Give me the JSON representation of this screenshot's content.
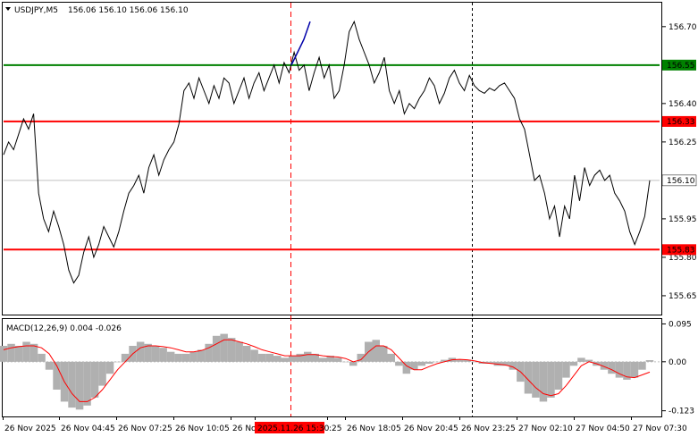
{
  "header": {
    "symbol": "USDJPY,M5",
    "ohlc": "156.06 156.10 156.06 156.10"
  },
  "chart_data": [
    {
      "type": "line",
      "title": "USDJPY,M5",
      "ylim": [
        155.58,
        156.79
      ],
      "y_ticks": [
        "156.70",
        "156.40",
        "156.25",
        "155.95",
        "155.80",
        "155.65"
      ],
      "x_ticks": [
        "26 Nov 2025",
        "26 Nov 04:45",
        "26 Nov 07:25",
        "26 Nov 10:05",
        "26 Nov",
        "2025.11.26 15:30",
        ":25",
        "26 Nov 18:05",
        "26 Nov 20:45",
        "26 Nov 23:25",
        "27 Nov 02:10",
        "27 Nov 04:50",
        "27 Nov 07:30"
      ],
      "levels": [
        {
          "label": "156.55",
          "value": 156.55,
          "color": "#008000"
        },
        {
          "label": "156.33",
          "value": 156.33,
          "color": "#ff0000"
        },
        {
          "label": "155.83",
          "value": 155.83,
          "color": "#ff0000"
        }
      ],
      "current_price": {
        "label": "156.10",
        "value": 156.1
      },
      "series": [
        {
          "color": "#000000",
          "values": [
            156.2,
            156.25,
            156.22,
            156.28,
            156.34,
            156.3,
            156.36,
            156.05,
            155.95,
            155.9,
            155.98,
            155.92,
            155.85,
            155.75,
            155.7,
            155.73,
            155.82,
            155.88,
            155.8,
            155.85,
            155.92,
            155.88,
            155.84,
            155.9,
            155.98,
            156.05,
            156.08,
            156.12,
            156.05,
            156.15,
            156.2,
            156.12,
            156.18,
            156.22,
            156.25,
            156.32,
            156.45,
            156.48,
            156.42,
            156.5,
            156.45,
            156.4,
            156.47,
            156.42,
            156.5,
            156.48,
            156.4,
            156.45,
            156.5,
            156.42,
            156.48,
            156.52,
            156.45,
            156.5,
            156.55,
            156.48,
            156.56,
            156.52,
            156.6,
            156.53,
            156.55,
            156.45,
            156.52,
            156.58,
            156.5,
            156.55,
            156.42,
            156.45,
            156.55,
            156.68,
            156.72,
            156.65,
            156.6,
            156.55,
            156.48,
            156.52,
            156.58,
            156.45,
            156.4,
            156.45,
            156.36,
            156.4,
            156.38,
            156.42,
            156.45,
            156.5,
            156.47,
            156.4,
            156.44,
            156.5,
            156.53,
            156.48,
            156.45,
            156.51,
            156.47,
            156.45,
            156.44,
            156.46,
            156.45,
            156.47,
            156.48,
            156.45,
            156.42,
            156.34,
            156.3,
            156.2,
            156.1,
            156.12,
            156.05,
            155.95,
            156.0,
            155.88,
            156.0,
            155.95,
            156.12,
            156.02,
            156.15,
            156.08,
            156.12,
            156.14,
            156.1,
            156.12,
            156.05,
            156.02,
            155.98,
            155.9,
            155.85,
            155.9,
            155.96,
            156.1
          ]
        },
        {
          "color": "#0000aa",
          "values": [
            156.55,
            156.6,
            156.65,
            156.72
          ]
        }
      ]
    },
    {
      "type": "bar",
      "title": "MACD(12,26,9) 0.004 -0.026",
      "ylim": [
        -0.135,
        0.105
      ],
      "y_ticks": [
        "0.095",
        "0.00",
        "-0.123"
      ],
      "series": [
        {
          "name": "MACD",
          "color": "#b0b0b0",
          "values": [
            0.04,
            0.045,
            0.04,
            0.05,
            0.045,
            0.02,
            -0.02,
            -0.07,
            -0.1,
            -0.115,
            -0.12,
            -0.11,
            -0.09,
            -0.06,
            -0.03,
            0.0,
            0.02,
            0.04,
            0.05,
            0.045,
            0.04,
            0.035,
            0.025,
            0.02,
            0.02,
            0.025,
            0.03,
            0.045,
            0.065,
            0.07,
            0.06,
            0.05,
            0.04,
            0.03,
            0.02,
            0.02,
            0.015,
            0.01,
            0.015,
            0.02,
            0.025,
            0.02,
            0.01,
            0.015,
            0.01,
            0.0,
            -0.01,
            0.02,
            0.05,
            0.055,
            0.04,
            0.02,
            -0.01,
            -0.03,
            -0.02,
            -0.01,
            -0.005,
            0.0,
            0.005,
            0.01,
            0.005,
            0.005,
            0.0,
            -0.005,
            -0.005,
            -0.01,
            -0.01,
            -0.02,
            -0.05,
            -0.08,
            -0.09,
            -0.1,
            -0.09,
            -0.07,
            -0.04,
            -0.01,
            0.01,
            0.005,
            -0.01,
            -0.02,
            -0.03,
            -0.04,
            -0.045,
            -0.04,
            -0.02,
            0.004
          ]
        },
        {
          "name": "Signal",
          "color": "#ff0000",
          "values": [
            0.03,
            0.035,
            0.038,
            0.04,
            0.04,
            0.035,
            0.02,
            -0.01,
            -0.05,
            -0.08,
            -0.1,
            -0.1,
            -0.09,
            -0.07,
            -0.045,
            -0.02,
            0.0,
            0.02,
            0.035,
            0.04,
            0.04,
            0.038,
            0.035,
            0.03,
            0.025,
            0.025,
            0.028,
            0.035,
            0.045,
            0.055,
            0.055,
            0.05,
            0.045,
            0.038,
            0.03,
            0.025,
            0.02,
            0.015,
            0.015,
            0.015,
            0.018,
            0.018,
            0.015,
            0.013,
            0.012,
            0.008,
            0.0,
            0.005,
            0.025,
            0.04,
            0.04,
            0.03,
            0.01,
            -0.01,
            -0.02,
            -0.02,
            -0.012,
            -0.005,
            0.0,
            0.005,
            0.006,
            0.005,
            0.002,
            -0.002,
            -0.004,
            -0.006,
            -0.008,
            -0.013,
            -0.025,
            -0.045,
            -0.065,
            -0.08,
            -0.085,
            -0.08,
            -0.06,
            -0.035,
            -0.01,
            0.0,
            -0.005,
            -0.012,
            -0.02,
            -0.03,
            -0.038,
            -0.04,
            -0.033,
            -0.026
          ]
        }
      ]
    }
  ]
}
